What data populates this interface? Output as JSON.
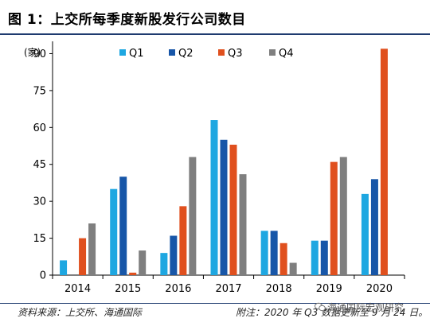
{
  "title": "图 1：上交所每季度新股发行公司数目",
  "footer": {
    "source": "资料来源：上交所、海通国际",
    "note": "附注：2020 年 Q3 数据更新至 9 月 24 日。",
    "watermark": "海通国际宏观研究"
  },
  "chart_data": {
    "type": "bar",
    "ylabel": "(家)",
    "ylim": [
      0,
      95
    ],
    "yticks": [
      0,
      15,
      30,
      45,
      60,
      75,
      90
    ],
    "categories": [
      "2014",
      "2015",
      "2016",
      "2017",
      "2018",
      "2019",
      "2020"
    ],
    "legend_position": "top",
    "grid": false,
    "series": [
      {
        "name": "Q1",
        "color": "#1ea7e1",
        "values": [
          6,
          35,
          9,
          63,
          18,
          14,
          33
        ]
      },
      {
        "name": "Q2",
        "color": "#1756a8",
        "values": [
          0,
          40,
          16,
          55,
          18,
          14,
          39
        ]
      },
      {
        "name": "Q3",
        "color": "#e0501e",
        "values": [
          15,
          1,
          28,
          53,
          13,
          46,
          92
        ]
      },
      {
        "name": "Q4",
        "color": "#7f7f7f",
        "values": [
          21,
          10,
          48,
          41,
          5,
          48,
          0
        ]
      }
    ]
  }
}
